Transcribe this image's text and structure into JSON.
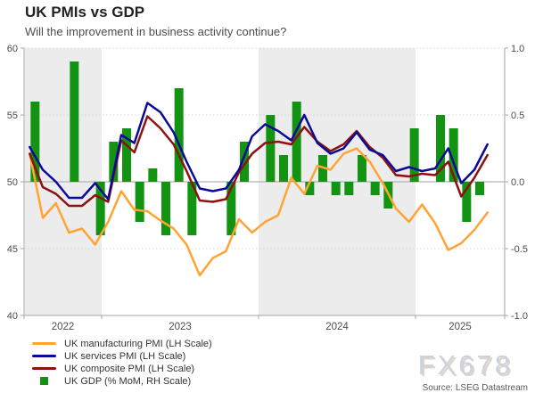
{
  "header": {
    "title": "UK PMIs vs GDP",
    "subtitle": "Will the improvement in business activity continue?"
  },
  "watermark": "FX678",
  "source": "Source: LSEG Datastream",
  "legend": [
    {
      "label": "UK manufacturing PMI (LH Scale)",
      "color": "#ffa333",
      "type": "line"
    },
    {
      "label": "UK services PMI (LH Scale)",
      "color": "#0a0a99",
      "type": "line"
    },
    {
      "label": "UK composite PMI (LH Scale)",
      "color": "#8e1111",
      "type": "line"
    },
    {
      "label": "UK GDP (% MoM, RH Scale)",
      "color": "#129312",
      "type": "square"
    }
  ],
  "colors": {
    "band": "#ececec",
    "grid_dotted": "#d9d9d9",
    "zero_line": "#b3b3b3",
    "axis": "#a6a6a6",
    "tick_label": "#4d4d4d"
  },
  "chart_data": {
    "type": "mixed",
    "subtype": "3 lines (left axis) + monthly bars (right axis)",
    "title": "UK PMIs vs GDP",
    "months": [
      "2022-07",
      "2022-08",
      "2022-09",
      "2022-10",
      "2022-11",
      "2022-12",
      "2023-01",
      "2023-02",
      "2023-03",
      "2023-04",
      "2023-05",
      "2023-06",
      "2023-07",
      "2023-08",
      "2023-09",
      "2023-10",
      "2023-11",
      "2023-12",
      "2024-01",
      "2024-02",
      "2024-03",
      "2024-04",
      "2024-05",
      "2024-06",
      "2024-07",
      "2024-08",
      "2024-09",
      "2024-10",
      "2024-11",
      "2024-12",
      "2025-01",
      "2025-02",
      "2025-03",
      "2025-04",
      "2025-05",
      "2025-06"
    ],
    "series": [
      {
        "name": "UK manufacturing PMI (LH Scale)",
        "type": "line",
        "axis": "left",
        "color": "#ffa333",
        "values": [
          52.1,
          47.3,
          48.4,
          46.2,
          46.5,
          45.3,
          47.0,
          49.3,
          47.9,
          47.8,
          47.1,
          46.5,
          45.3,
          43.0,
          44.3,
          44.8,
          47.2,
          46.2,
          47.0,
          47.5,
          50.3,
          49.1,
          51.2,
          50.9,
          52.1,
          52.5,
          51.5,
          49.9,
          48.0,
          47.0,
          48.3,
          46.9,
          44.9,
          45.4,
          46.4,
          47.7
        ]
      },
      {
        "name": "UK services PMI (LH Scale)",
        "type": "line",
        "axis": "left",
        "color": "#0a0a99",
        "values": [
          52.6,
          50.9,
          50.0,
          48.8,
          48.8,
          49.9,
          48.7,
          53.5,
          52.9,
          55.9,
          55.2,
          53.7,
          51.5,
          49.5,
          49.3,
          49.5,
          50.9,
          53.4,
          54.3,
          53.8,
          53.1,
          55.0,
          52.9,
          52.1,
          52.5,
          53.7,
          52.4,
          52.0,
          50.8,
          51.1,
          50.8,
          51.0,
          52.5,
          49.9,
          50.9,
          52.8
        ]
      },
      {
        "name": "UK composite PMI (LH Scale)",
        "type": "line",
        "axis": "left",
        "color": "#8e1111",
        "values": [
          52.1,
          49.6,
          49.1,
          48.2,
          48.2,
          49.0,
          48.5,
          53.1,
          52.2,
          54.9,
          54.0,
          52.8,
          50.8,
          48.6,
          48.5,
          48.7,
          50.7,
          52.1,
          52.9,
          53.0,
          52.8,
          54.1,
          53.0,
          52.3,
          52.8,
          53.8,
          52.6,
          51.8,
          50.5,
          50.4,
          50.6,
          50.5,
          51.5,
          48.9,
          50.3,
          52.0
        ]
      },
      {
        "name": "UK GDP (% MoM, RH Scale)",
        "type": "bar",
        "axis": "right",
        "color": "#129312",
        "values": [
          0.6,
          0.0,
          0.0,
          0.9,
          0.0,
          -0.4,
          0.3,
          0.4,
          -0.3,
          0.1,
          -0.4,
          0.7,
          -0.4,
          0.0,
          0.0,
          -0.4,
          0.3,
          0.0,
          0.5,
          0.2,
          0.6,
          -0.1,
          0.2,
          -0.1,
          -0.1,
          0.2,
          -0.1,
          -0.2,
          0.0,
          0.4,
          0.0,
          0.5,
          0.4,
          -0.3,
          -0.1,
          null
        ]
      }
    ],
    "left_axis": {
      "min": 40,
      "max": 60,
      "ticks": [
        60,
        55,
        50,
        45,
        40
      ],
      "tick_labels": [
        "60",
        "55",
        "50",
        "45",
        "40"
      ]
    },
    "right_axis": {
      "min": -1.0,
      "max": 1.0,
      "ticks": [
        1.0,
        0.5,
        0.0,
        -0.5,
        -1.0
      ],
      "tick_labels": [
        "1.0",
        "0.5",
        "0.0",
        "-0.5",
        "-1.0"
      ]
    },
    "x_axis": {
      "year_labels": [
        "2022",
        "2023",
        "2024",
        "2025"
      ]
    },
    "shaded_years": [
      "2022",
      "2024"
    ],
    "grid": "dotted horizontal at 45/55/60, solid at 50 (=0.0)",
    "legend_position": "bottom-left"
  }
}
